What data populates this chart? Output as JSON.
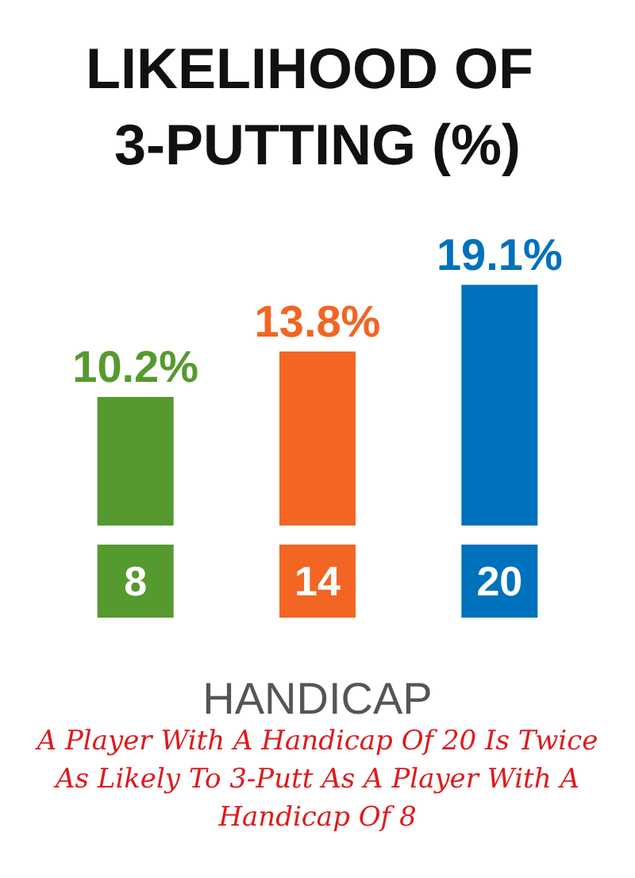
{
  "chart_data": {
    "type": "bar",
    "title": "LIKELIHOOD OF 3-PUTTING (%)",
    "xlabel": "HANDICAP",
    "categories": [
      "8",
      "14",
      "20"
    ],
    "values": [
      10.2,
      13.8,
      19.1
    ],
    "value_labels": [
      "10.2%",
      "13.8%",
      "19.1%"
    ],
    "colors": [
      "#559a2e",
      "#f26522",
      "#0071bc"
    ],
    "annotations": [
      "A Player With A Handicap Of 20 Is Twice As Likely To 3-Putt As A Player With A Handicap Of 8"
    ]
  }
}
